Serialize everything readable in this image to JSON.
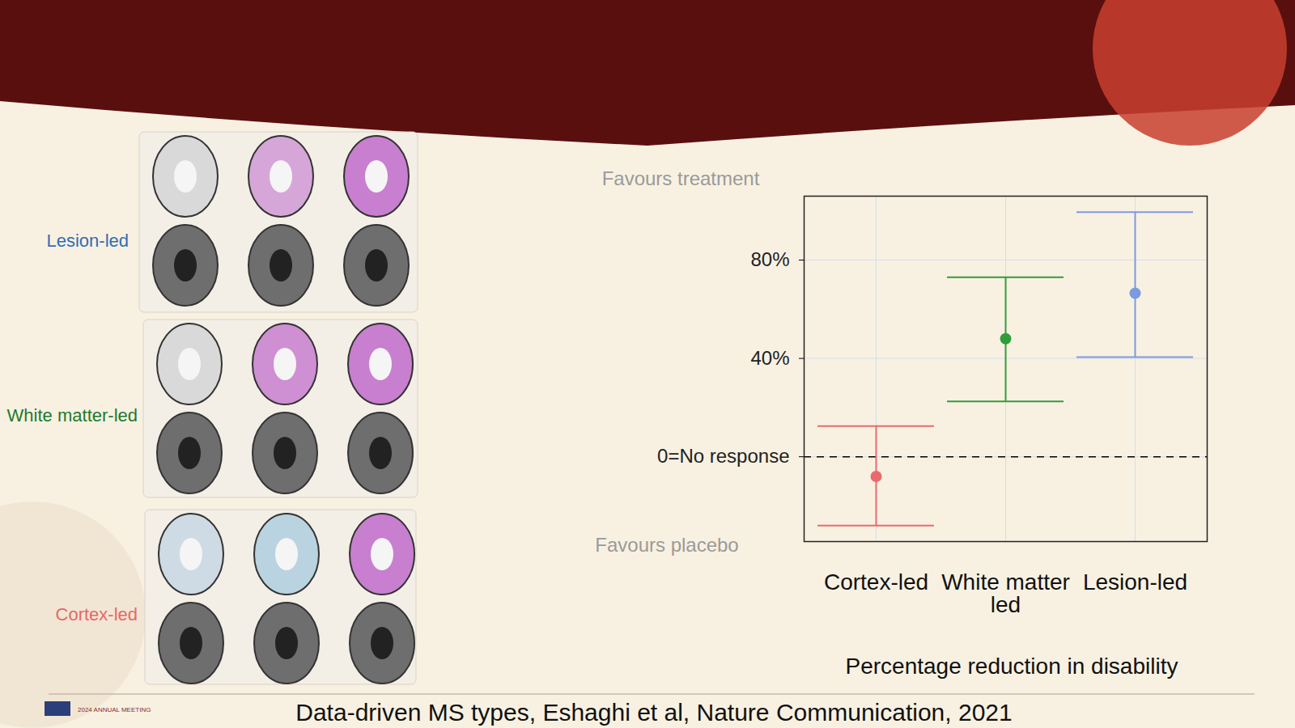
{
  "chart_data": {
    "type": "errorbar",
    "categories": [
      "Cortex-led",
      "White matter led",
      "Lesion-led"
    ],
    "values": [
      -8,
      48,
      66.5
    ],
    "error_low": [
      -28,
      22.5,
      40.5
    ],
    "error_high": [
      12.5,
      73,
      99.5
    ],
    "colors": [
      "#ea6a6c",
      "#2f9e3a",
      "#7b9be0"
    ],
    "ylim": [
      -34.5,
      106
    ],
    "yticks": [
      {
        "value": 0,
        "label": "0=No response"
      },
      {
        "value": 40,
        "label": "40%"
      },
      {
        "value": 80,
        "label": "80%"
      }
    ],
    "reference_y": 0,
    "line_style": "dashed",
    "grid": true,
    "xlabel": "Percentage reduction in disability",
    "annotations": [
      "Favours treatment",
      "Favours placebo"
    ],
    "panel_labels": [
      {
        "text": "Lesion-led",
        "color": "#2f6fb5"
      },
      {
        "text": "White matter-led",
        "color": "#1f7a2e"
      },
      {
        "text": "Cortex-led",
        "color": "#e8666a"
      }
    ],
    "caption": "Data-driven MS types, Eshaghi et al, Nature Communication, 2021",
    "footer": "2024 ANNUAL MEETING"
  }
}
